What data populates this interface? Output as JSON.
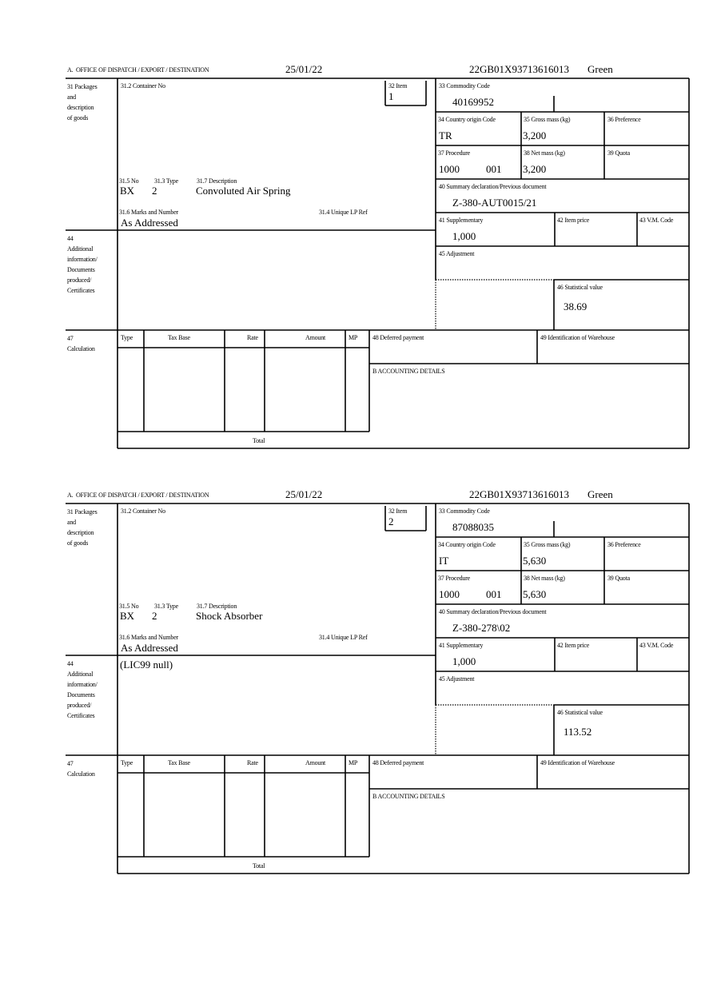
{
  "labels": {
    "office": "A.  OFFICE OF DISPATCH / EXPORT / DESTINATION",
    "packages": "31 Packages\nand\ndescription\nof goods",
    "container_no": "31.2 Container No",
    "item": "32 Item",
    "commodity_code": "33 Commodity Code",
    "country_origin": "34 Country origin Code",
    "gross_mass": "35 Gross mass (kg)",
    "preference": "36 Preference",
    "procedure": "37 Procedure",
    "net_mass": "38 Net mass (kg)",
    "quota": "39 Quota",
    "summary_declaration": "40 Summary declaration/Previous document",
    "supplementary": "41 Supplementary",
    "item_price": "42 Item price",
    "vm_code": "43 V.M. Code",
    "no": "31.5 No",
    "type_313": "31.3 Type",
    "description": "31.7 Description",
    "marks": "31.6 Marks and Number",
    "unique_lp_ref": "31.4 Unique LP Ref",
    "additional_info": "44\nAdditional\ninformation/\nDocuments\nproduced/\nCertificates",
    "adjustment": "45 Adjustment",
    "statistical_value": "46 Statistical value",
    "calculation": "47\nCalculation",
    "calc_type": "Type",
    "tax_base": "Tax Base",
    "rate": "Rate",
    "amount": "Amount",
    "mp": "MP",
    "deferred_payment": "48 Deferred payment",
    "warehouse": "49 Identification of Warehouse",
    "accounting": "B ACCOUNTING DETAILS",
    "total": "Total"
  },
  "items": [
    {
      "date": "25/01/22",
      "reference": "22GB01X93713616013",
      "route": "Green",
      "item_no": "1",
      "commodity_code": "40169952",
      "country_origin": "TR",
      "gross_mass": "3,200",
      "procedure": "1000",
      "procedure_additional": "001",
      "net_mass": "3,200",
      "summary_declaration": "Z-380-AUT0015/21",
      "supplementary": "1,000",
      "package_kind": "BX",
      "package_count": "2",
      "description": "Convoluted Air Spring",
      "marks": "As Addressed",
      "additional_info": "",
      "statistical_value": "38.69"
    },
    {
      "date": "25/01/22",
      "reference": "22GB01X93713616013",
      "route": "Green",
      "item_no": "2",
      "commodity_code": "87088035",
      "country_origin": "IT",
      "gross_mass": "5,630",
      "procedure": "1000",
      "procedure_additional": "001",
      "net_mass": "5,630",
      "summary_declaration": "Z-380-278\\02",
      "supplementary": "1,000",
      "package_kind": "BX",
      "package_count": "2",
      "description": "Shock Absorber",
      "marks": "As Addressed",
      "additional_info": "(LIC99 null)",
      "statistical_value": "113.52"
    }
  ]
}
